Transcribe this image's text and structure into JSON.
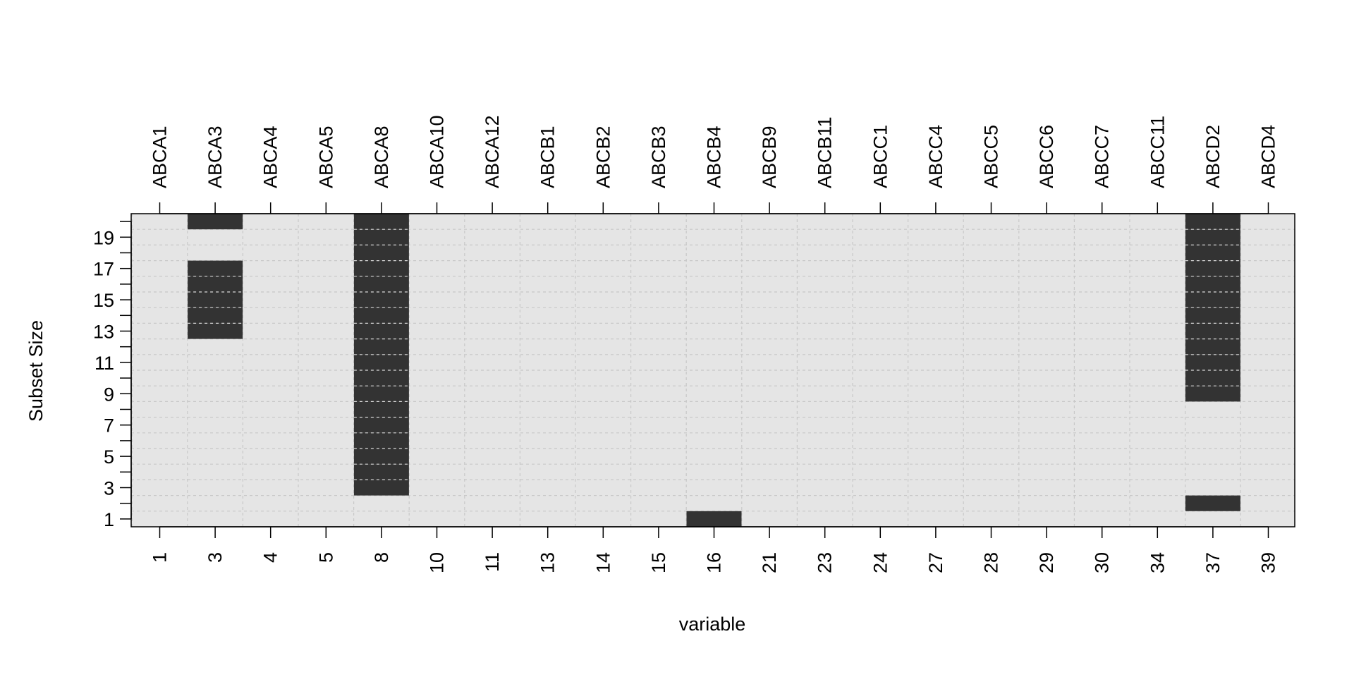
{
  "chart_data": {
    "type": "heatmap",
    "title": "",
    "xlabel": "variable",
    "ylabel": "Subset Size",
    "top_labels": [
      "ABCA1",
      "ABCA3",
      "ABCA4",
      "ABCA5",
      "ABCA8",
      "ABCA10",
      "ABCA12",
      "ABCB1",
      "ABCB2",
      "ABCB3",
      "ABCB4",
      "ABCB9",
      "ABCB11",
      "ABCC1",
      "ABCC4",
      "ABCC5",
      "ABCC6",
      "ABCC7",
      "ABCC11",
      "ABCD2",
      "ABCD4"
    ],
    "bottom_labels": [
      "1",
      "3",
      "4",
      "5",
      "8",
      "10",
      "11",
      "13",
      "14",
      "15",
      "16",
      "21",
      "23",
      "24",
      "27",
      "28",
      "29",
      "30",
      "34",
      "37",
      "39"
    ],
    "y_ticks": [
      1,
      3,
      5,
      7,
      9,
      11,
      13,
      15,
      17,
      19
    ],
    "y_range": [
      1,
      20
    ],
    "selected": [
      {
        "variable": "ABCA3",
        "sizes": [
          13,
          14,
          15,
          16,
          17,
          20
        ]
      },
      {
        "variable": "ABCA8",
        "sizes": [
          3,
          4,
          5,
          6,
          7,
          8,
          9,
          10,
          11,
          12,
          13,
          14,
          15,
          16,
          17,
          18,
          19,
          20
        ]
      },
      {
        "variable": "ABCB4",
        "sizes": [
          1
        ]
      },
      {
        "variable": "ABCD2",
        "sizes": [
          2,
          9,
          10,
          11,
          12,
          13,
          14,
          15,
          16,
          17,
          18,
          19,
          20
        ]
      }
    ],
    "colors": {
      "panel": "#e5e5e5",
      "selected": "#333333",
      "grid": "#c8c8c8",
      "inner_line": "#d9d9d9"
    },
    "grid": true
  }
}
